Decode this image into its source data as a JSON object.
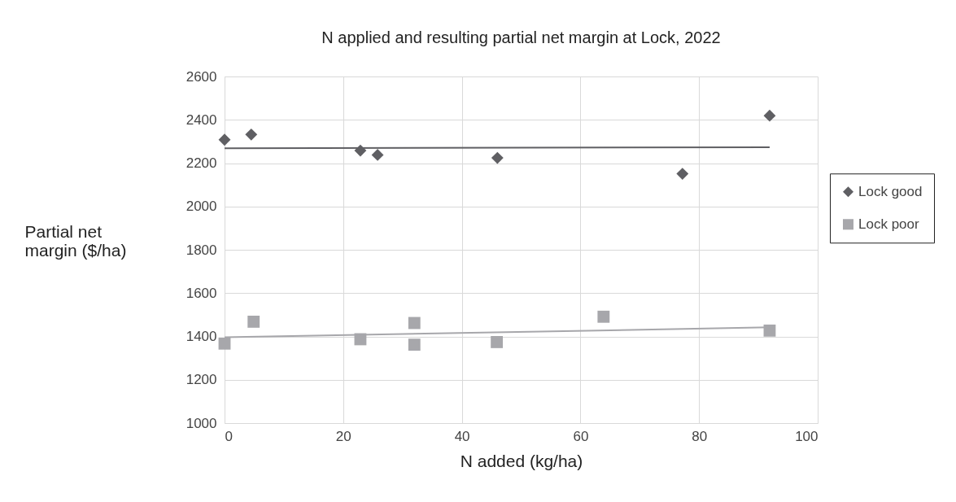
{
  "chart_data": {
    "type": "scatter",
    "title": "N applied and resulting partial net margin at Lock, 2022",
    "xlabel": "N added (kg/ha)",
    "ylabel": "Partial net margin ($/ha)",
    "series": [
      {
        "name": "Lock good",
        "color": "#5f5f63",
        "marker": "diamond",
        "x": [
          0,
          4.5,
          22.9,
          25.8,
          46,
          77.2,
          91.9
        ],
        "values": [
          2308,
          2332,
          2258,
          2238,
          2224,
          2151,
          2419
        ]
      },
      {
        "name": "Lock poor",
        "color": "#a7a7ab",
        "marker": "square",
        "x": [
          0,
          4.9,
          22.9,
          32,
          32,
          45.9,
          63.9,
          91.9
        ],
        "values": [
          1367,
          1468,
          1387,
          1462,
          1362,
          1374,
          1491,
          1427
        ]
      },
      {
        "type": "line",
        "color": "#5f5f63",
        "x": [
          0,
          91.9
        ],
        "values": [
          2269,
          2273
        ]
      },
      {
        "type": "line",
        "color": "#a7a7ab",
        "x": [
          0,
          91.9
        ],
        "values": [
          1396,
          1442
        ]
      }
    ],
    "xlim": [
      0,
      100
    ],
    "xticks": [
      0,
      20,
      40,
      60,
      80,
      100
    ],
    "ylim": [
      1000,
      2600
    ],
    "yticks": [
      1000,
      1200,
      1400,
      1600,
      1800,
      2000,
      2200,
      2400,
      2600
    ],
    "grid": true,
    "legend": "right"
  }
}
